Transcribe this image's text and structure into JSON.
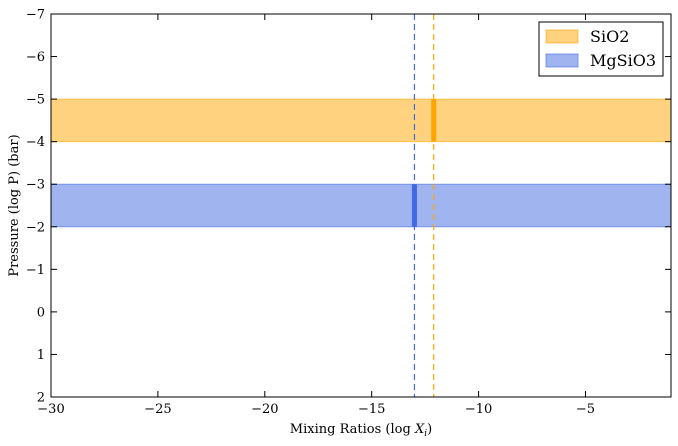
{
  "chart_data": {
    "type": "area",
    "title": "",
    "xlabel": "Mixing Ratios (log ",
    "xlabel_var": "X",
    "xlabel_sub": "i",
    "xlabel_end": ")",
    "ylabel": "Pressure (log P) (bar)",
    "xlim": [
      -30,
      -1
    ],
    "ylim": [
      2,
      -7
    ],
    "y_inverted": true,
    "grid": false,
    "legend_position": "top-right",
    "x_ticks": [
      -30,
      -25,
      -20,
      -15,
      -10,
      -5
    ],
    "x_tick_labels": [
      "−30",
      "−25",
      "−20",
      "−15",
      "−10",
      "−5"
    ],
    "y_ticks": [
      -7,
      -6,
      -5,
      -4,
      -3,
      -2,
      -1,
      0,
      1,
      2
    ],
    "y_tick_labels": [
      "−7",
      "−6",
      "−5",
      "−4",
      "−3",
      "−2",
      "−1",
      "0",
      "1",
      "2"
    ],
    "series": [
      {
        "name": "SiO2",
        "color": "#ffa500",
        "band_pressure": [
          -5,
          -4
        ],
        "mixing_ratio": -12.1
      },
      {
        "name": "MgSiO3",
        "color": "#4169e1",
        "band_pressure": [
          -3,
          -2
        ],
        "mixing_ratio": -13.0
      }
    ]
  }
}
